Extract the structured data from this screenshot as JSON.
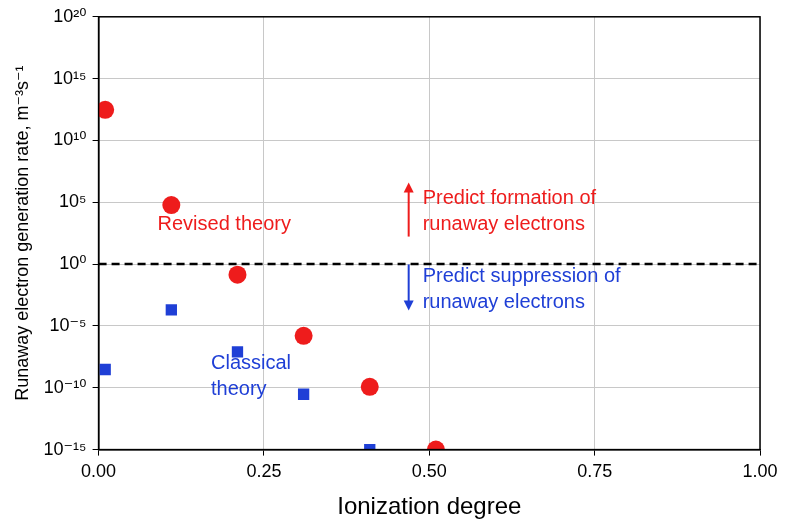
{
  "chart_data": {
    "type": "scatter",
    "x_label": "Ionization degree",
    "y_label": "Runaway electron generation rate, m⁻³s⁻¹",
    "log": "y",
    "grid": true,
    "xlim": [
      0,
      1
    ],
    "xticks": [
      {
        "value": 0,
        "label": "0.00"
      },
      {
        "value": 0.25,
        "label": "0.25"
      },
      {
        "value": 0.5,
        "label": "0.50"
      },
      {
        "value": 0.75,
        "label": "0.75"
      },
      {
        "value": 1,
        "label": "1.00"
      }
    ],
    "ylim": [
      1e-15,
      1e+20
    ],
    "yticks": [
      {
        "value": 1e-15,
        "label": "10⁻¹⁵"
      },
      {
        "value": 1e-10,
        "label": "10⁻¹⁰"
      },
      {
        "value": 1e-05,
        "label": "10⁻⁵"
      },
      {
        "value": 1,
        "label": "10⁰"
      },
      {
        "value": 100000.0,
        "label": "10⁵"
      },
      {
        "value": 10000000000.0,
        "label": "10¹⁰"
      },
      {
        "value": 1000000000000000.0,
        "label": "10¹⁵"
      },
      {
        "value": 1e+20,
        "label": "10²⁰"
      }
    ],
    "series": [
      {
        "name": "Revised theory",
        "color": "#ee1c1c",
        "marker": "circle",
        "x": [
          0.01,
          0.11,
          0.21,
          0.31,
          0.41,
          0.51
        ],
        "values": [
          3000000000000.0,
          60000.0,
          0.14,
          1.6e-06,
          1.2e-10,
          1e-15
        ]
      },
      {
        "name": "Classical theory",
        "color": "#1f3fd6",
        "marker": "square",
        "x": [
          0.01,
          0.11,
          0.21,
          0.31,
          0.41
        ],
        "values": [
          3e-09,
          0.0002,
          8e-08,
          3e-11,
          1e-15
        ]
      }
    ],
    "hline": {
      "value": 1,
      "line_style": "dashed",
      "color": "#000000"
    },
    "annotations": [
      {
        "text": [
          "Revised theory"
        ],
        "color": "#ee1c1c"
      },
      {
        "text": [
          "Classical",
          "theory"
        ],
        "color": "#1f3fd6"
      },
      {
        "text": [
          "Predict formation of",
          "runaway electrons"
        ],
        "color": "#ee1c1c"
      },
      {
        "text": [
          "Predict suppression of",
          "runaway electrons"
        ],
        "color": "#1f3fd6"
      }
    ]
  }
}
